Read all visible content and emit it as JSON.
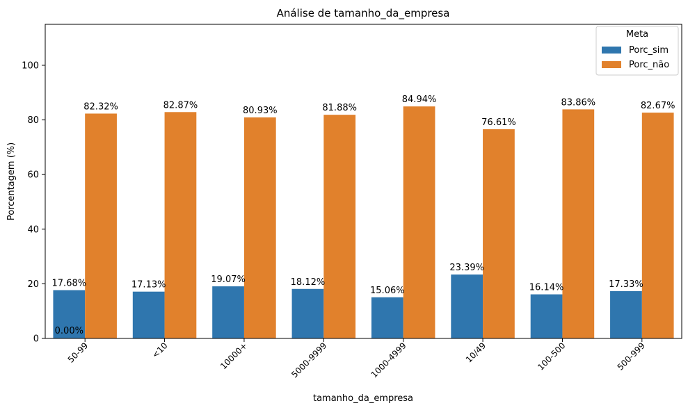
{
  "chart_data": {
    "type": "bar",
    "title": "Análise de tamanho_da_empresa",
    "xlabel": "tamanho_da_empresa",
    "ylabel": "Porcentagem (%)",
    "ylim": [
      0,
      115
    ],
    "yticks": [
      0,
      20,
      40,
      60,
      80,
      100
    ],
    "categories": [
      "50-99",
      "<10",
      "10000+",
      "5000-9999",
      "1000-4999",
      "10/49",
      "100-500",
      "500-999"
    ],
    "series": [
      {
        "name": "Porc_sim",
        "color": "#2f76ae",
        "values": [
          17.68,
          17.13,
          19.07,
          18.12,
          15.06,
          23.39,
          16.14,
          17.33
        ],
        "labels": [
          "17.68%",
          "17.13%",
          "19.07%",
          "18.12%",
          "15.06%",
          "23.39%",
          "16.14%",
          "17.33%"
        ],
        "label_colors": [
          "#000000",
          "#000000",
          "#000000",
          "#000000",
          "#000000",
          "#ff0000",
          "#000000",
          "#000000"
        ]
      },
      {
        "name": "Porc_não",
        "color": "#e1812c",
        "values": [
          82.32,
          82.87,
          80.93,
          81.88,
          84.94,
          76.61,
          83.86,
          82.67
        ],
        "labels": [
          "82.32%",
          "82.87%",
          "80.93%",
          "81.88%",
          "84.94%",
          "76.61%",
          "83.86%",
          "82.67%"
        ],
        "label_colors": [
          "#000000",
          "#000000",
          "#000000",
          "#000000",
          "#ff0000",
          "#000000",
          "#000000",
          "#000000"
        ]
      }
    ],
    "extra_annotation": {
      "text": "0.00%",
      "category": "50-99",
      "value": 0
    },
    "legend": {
      "title": "Meta",
      "placement": "top-right"
    },
    "grid": false
  }
}
